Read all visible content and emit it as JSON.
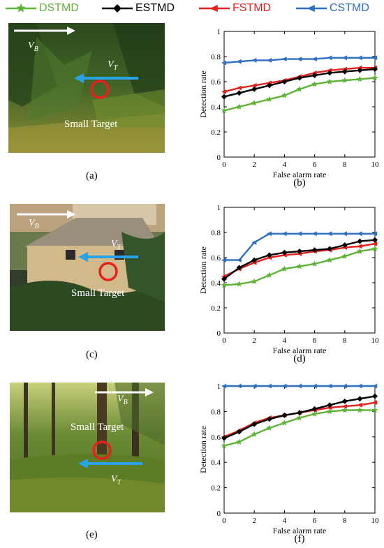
{
  "legend": [
    {
      "label": "DSTMD",
      "color": "#5cb335",
      "marker": "star"
    },
    {
      "label": "ESTMD",
      "color": "#000000",
      "marker": "diamond"
    },
    {
      "label": "FSTMD",
      "color": "#e2201c",
      "marker": "left-triangle"
    },
    {
      "label": "CSTMD",
      "color": "#2e6fc0",
      "marker": "left-triangle"
    }
  ],
  "scenes": [
    {
      "label": "(a)",
      "target_label": "Small Target",
      "vb": "V",
      "vb_sub": "B",
      "vt": "V",
      "vt_sub": "T"
    },
    {
      "label": "(c)",
      "target_label": "Small Target",
      "vb": "V",
      "vb_sub": "B",
      "vt": "V",
      "vt_sub": "T"
    },
    {
      "label": "(e)",
      "target_label": "Small Target",
      "vb": "V",
      "vb_sub": "B",
      "vt": "V",
      "vt_sub": "T"
    }
  ],
  "chart_data": [
    {
      "type": "line",
      "panel_label": "(b)",
      "xlabel": "False alarm rate",
      "ylabel": "Detection rate",
      "xlim": [
        0,
        10
      ],
      "ylim": [
        0,
        1
      ],
      "xticks": [
        0,
        2,
        4,
        6,
        8,
        10
      ],
      "yticks": [
        0,
        0.2,
        0.4,
        0.6,
        0.8,
        1
      ],
      "x": [
        0,
        1,
        2,
        3,
        4,
        5,
        6,
        7,
        8,
        9,
        10
      ],
      "series": [
        {
          "name": "DSTMD",
          "values": [
            0.37,
            0.4,
            0.43,
            0.46,
            0.49,
            0.54,
            0.58,
            0.6,
            0.61,
            0.62,
            0.63
          ]
        },
        {
          "name": "ESTMD",
          "values": [
            0.48,
            0.51,
            0.54,
            0.57,
            0.6,
            0.63,
            0.65,
            0.67,
            0.68,
            0.69,
            0.7
          ]
        },
        {
          "name": "FSTMD",
          "values": [
            0.52,
            0.55,
            0.57,
            0.59,
            0.61,
            0.64,
            0.67,
            0.69,
            0.7,
            0.71,
            0.71
          ]
        },
        {
          "name": "CSTMD",
          "values": [
            0.75,
            0.76,
            0.77,
            0.77,
            0.78,
            0.78,
            0.78,
            0.79,
            0.79,
            0.79,
            0.79
          ]
        }
      ]
    },
    {
      "type": "line",
      "panel_label": "(d)",
      "xlabel": "False alarm rate",
      "ylabel": "Detection rate",
      "xlim": [
        0,
        10
      ],
      "ylim": [
        0,
        1
      ],
      "xticks": [
        0,
        2,
        4,
        6,
        8,
        10
      ],
      "yticks": [
        0,
        0.2,
        0.4,
        0.6,
        0.8,
        1
      ],
      "x": [
        0,
        1,
        2,
        3,
        4,
        5,
        6,
        7,
        8,
        9,
        10
      ],
      "series": [
        {
          "name": "DSTMD",
          "values": [
            0.38,
            0.39,
            0.41,
            0.46,
            0.51,
            0.53,
            0.55,
            0.58,
            0.61,
            0.65,
            0.67
          ]
        },
        {
          "name": "ESTMD",
          "values": [
            0.43,
            0.52,
            0.58,
            0.62,
            0.64,
            0.65,
            0.66,
            0.67,
            0.7,
            0.73,
            0.74
          ]
        },
        {
          "name": "FSTMD",
          "values": [
            0.45,
            0.51,
            0.56,
            0.6,
            0.62,
            0.63,
            0.65,
            0.66,
            0.68,
            0.69,
            0.71
          ]
        },
        {
          "name": "CSTMD",
          "values": [
            0.58,
            0.58,
            0.72,
            0.79,
            0.79,
            0.79,
            0.79,
            0.79,
            0.79,
            0.79,
            0.79
          ]
        }
      ]
    },
    {
      "type": "line",
      "panel_label": "(f)",
      "xlabel": "False alarm rate",
      "ylabel": "Detection rate",
      "xlim": [
        0,
        10
      ],
      "ylim": [
        0,
        1
      ],
      "xticks": [
        0,
        2,
        4,
        6,
        8,
        10
      ],
      "yticks": [
        0,
        0.2,
        0.4,
        0.6,
        0.8,
        1
      ],
      "x": [
        0,
        1,
        2,
        3,
        4,
        5,
        6,
        7,
        8,
        9,
        10
      ],
      "series": [
        {
          "name": "DSTMD",
          "values": [
            0.53,
            0.56,
            0.62,
            0.67,
            0.71,
            0.75,
            0.78,
            0.8,
            0.81,
            0.81,
            0.81
          ]
        },
        {
          "name": "ESTMD",
          "values": [
            0.59,
            0.64,
            0.7,
            0.74,
            0.77,
            0.79,
            0.82,
            0.85,
            0.88,
            0.9,
            0.92
          ]
        },
        {
          "name": "FSTMD",
          "values": [
            0.6,
            0.65,
            0.71,
            0.75,
            0.77,
            0.79,
            0.81,
            0.83,
            0.84,
            0.85,
            0.87
          ]
        },
        {
          "name": "CSTMD",
          "values": [
            1,
            1,
            1,
            1,
            1,
            1,
            1,
            1,
            1,
            1,
            1
          ]
        }
      ]
    }
  ]
}
